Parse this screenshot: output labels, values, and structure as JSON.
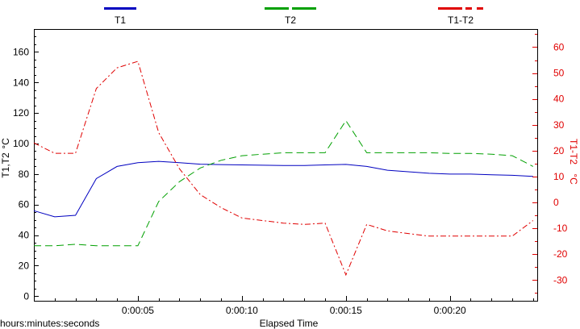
{
  "chart_data": {
    "type": "line",
    "legend": {
      "placement": "top",
      "entries": [
        "T1",
        "T2",
        "T1-T2"
      ]
    },
    "x_axis": {
      "label": "Elapsed Time",
      "format_label": "hours:minutes:seconds",
      "range_seconds": [
        0,
        24.2
      ],
      "ticks": [
        {
          "value": 5,
          "label": "0:00:05"
        },
        {
          "value": 10,
          "label": "0:00:10"
        },
        {
          "value": 15,
          "label": "0:00:15"
        },
        {
          "value": 20,
          "label": "0:00:20"
        }
      ]
    },
    "y_left": {
      "label": "T1,T2",
      "unit": "°C",
      "range": [
        -3,
        175
      ],
      "ticks": [
        0,
        20,
        40,
        60,
        80,
        100,
        120,
        140,
        160
      ]
    },
    "y_right": {
      "label": "T1-T2",
      "unit": "°C",
      "range": [
        -38,
        67
      ],
      "ticks": [
        -30,
        -20,
        -10,
        0,
        10,
        20,
        30,
        40,
        50,
        60
      ]
    },
    "grid": false,
    "series": [
      {
        "name": "T1",
        "axis": "left",
        "color": "#0000c0",
        "dash": "solid",
        "x": [
          0,
          1,
          2,
          3,
          4,
          5,
          6,
          7,
          8,
          9,
          10,
          11,
          12,
          13,
          14,
          15,
          16,
          17,
          18,
          19,
          20,
          21,
          22,
          23,
          24
        ],
        "y": [
          56,
          52,
          53,
          77,
          85,
          87.5,
          88.3,
          87.5,
          86.5,
          86.2,
          86,
          85.8,
          85.6,
          85.6,
          86,
          86.3,
          85,
          82.5,
          81.5,
          80.5,
          80,
          80,
          79.5,
          79.2,
          78.5
        ]
      },
      {
        "name": "T2",
        "axis": "left",
        "color": "#00a000",
        "dash": "dashed",
        "x": [
          0,
          1,
          2,
          3,
          4,
          5,
          6,
          7,
          8,
          9,
          10,
          11,
          12,
          13,
          14,
          15,
          16,
          17,
          18,
          19,
          20,
          21,
          22,
          23,
          24
        ],
        "y": [
          33,
          33,
          34,
          33,
          33,
          33,
          62,
          75,
          84,
          89,
          92,
          93,
          94,
          94,
          94,
          115,
          94,
          94,
          94,
          94,
          93.5,
          93.5,
          93,
          92,
          85
        ]
      },
      {
        "name": "T1-T2",
        "axis": "right",
        "color": "#e00000",
        "dash": "dashdot",
        "x": [
          0,
          1,
          2,
          3,
          4,
          5,
          6,
          7,
          8,
          9,
          10,
          11,
          12,
          13,
          14,
          15,
          16,
          17,
          18,
          19,
          20,
          21,
          22,
          23,
          24
        ],
        "y": [
          23,
          19,
          19,
          44,
          52,
          54.5,
          27,
          13,
          3,
          -2,
          -6,
          -7,
          -8,
          -8.5,
          -8,
          -28,
          -8.5,
          -11,
          -12,
          -13,
          -13,
          -13,
          -13,
          -13,
          -7
        ]
      }
    ]
  }
}
